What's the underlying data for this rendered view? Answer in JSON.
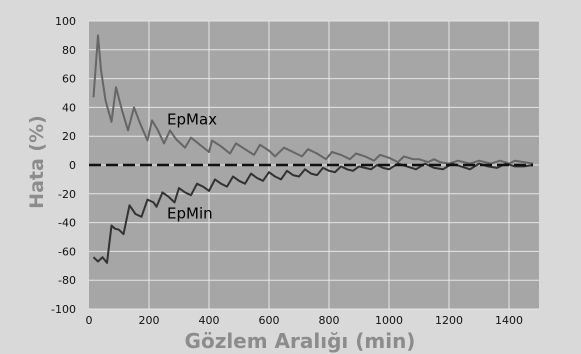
{
  "chart_data": {
    "type": "line",
    "title": "",
    "xlabel": "Gözlem Aralığı (min)",
    "ylabel": "Hata (%)",
    "xlim": [
      0,
      1500
    ],
    "ylim": [
      -100,
      100
    ],
    "x_ticks": [
      0,
      200,
      400,
      600,
      800,
      1000,
      1200,
      1400
    ],
    "y_ticks": [
      100,
      80,
      60,
      40,
      20,
      0,
      -20,
      -40,
      -60,
      -80,
      -100
    ],
    "grid": true,
    "series": [
      {
        "name": "EpMax",
        "color": "#666666",
        "points": [
          [
            15,
            47
          ],
          [
            30,
            90
          ],
          [
            40,
            66
          ],
          [
            55,
            45
          ],
          [
            75,
            30
          ],
          [
            90,
            54
          ],
          [
            110,
            38
          ],
          [
            130,
            24
          ],
          [
            150,
            40
          ],
          [
            170,
            29
          ],
          [
            195,
            17
          ],
          [
            210,
            31
          ],
          [
            230,
            24
          ],
          [
            250,
            15
          ],
          [
            270,
            24
          ],
          [
            290,
            18
          ],
          [
            320,
            12
          ],
          [
            340,
            19
          ],
          [
            370,
            14
          ],
          [
            400,
            9
          ],
          [
            410,
            17
          ],
          [
            440,
            13
          ],
          [
            470,
            8
          ],
          [
            490,
            15
          ],
          [
            520,
            11
          ],
          [
            550,
            7
          ],
          [
            570,
            14
          ],
          [
            600,
            10
          ],
          [
            620,
            6
          ],
          [
            650,
            12
          ],
          [
            680,
            9
          ],
          [
            710,
            6
          ],
          [
            730,
            11
          ],
          [
            760,
            8
          ],
          [
            790,
            4
          ],
          [
            810,
            9
          ],
          [
            840,
            7
          ],
          [
            870,
            4
          ],
          [
            890,
            8
          ],
          [
            920,
            6
          ],
          [
            950,
            3
          ],
          [
            970,
            7
          ],
          [
            1000,
            5
          ],
          [
            1030,
            2
          ],
          [
            1050,
            6
          ],
          [
            1080,
            4
          ],
          [
            1100,
            4
          ],
          [
            1130,
            2
          ],
          [
            1150,
            4
          ],
          [
            1170,
            2
          ],
          [
            1200,
            1
          ],
          [
            1230,
            3
          ],
          [
            1270,
            1
          ],
          [
            1300,
            3
          ],
          [
            1340,
            1
          ],
          [
            1370,
            3
          ],
          [
            1400,
            1
          ],
          [
            1420,
            3
          ],
          [
            1450,
            2
          ],
          [
            1480,
            1
          ]
        ]
      },
      {
        "name": "EpMin",
        "color": "#333333",
        "points": [
          [
            15,
            -64
          ],
          [
            30,
            -67
          ],
          [
            45,
            -64
          ],
          [
            60,
            -68
          ],
          [
            75,
            -42
          ],
          [
            85,
            -44
          ],
          [
            100,
            -45
          ],
          [
            115,
            -48
          ],
          [
            135,
            -28
          ],
          [
            155,
            -34
          ],
          [
            175,
            -36
          ],
          [
            195,
            -24
          ],
          [
            215,
            -26
          ],
          [
            225,
            -29
          ],
          [
            245,
            -19
          ],
          [
            265,
            -22
          ],
          [
            285,
            -26
          ],
          [
            300,
            -16
          ],
          [
            320,
            -19
          ],
          [
            340,
            -21
          ],
          [
            360,
            -13
          ],
          [
            380,
            -15
          ],
          [
            400,
            -18
          ],
          [
            420,
            -10
          ],
          [
            440,
            -13
          ],
          [
            460,
            -15
          ],
          [
            480,
            -8
          ],
          [
            500,
            -11
          ],
          [
            520,
            -13
          ],
          [
            540,
            -6
          ],
          [
            560,
            -9
          ],
          [
            580,
            -11
          ],
          [
            600,
            -5
          ],
          [
            620,
            -8
          ],
          [
            640,
            -10
          ],
          [
            660,
            -4
          ],
          [
            680,
            -7
          ],
          [
            700,
            -8
          ],
          [
            720,
            -3
          ],
          [
            740,
            -6
          ],
          [
            760,
            -7
          ],
          [
            780,
            -2
          ],
          [
            800,
            -4
          ],
          [
            820,
            -5
          ],
          [
            840,
            -1
          ],
          [
            860,
            -3
          ],
          [
            880,
            -4
          ],
          [
            900,
            -1
          ],
          [
            920,
            -2
          ],
          [
            940,
            -3
          ],
          [
            960,
            0
          ],
          [
            980,
            -2
          ],
          [
            1000,
            -3
          ],
          [
            1030,
            1
          ],
          [
            1060,
            -1
          ],
          [
            1090,
            -3
          ],
          [
            1120,
            1
          ],
          [
            1150,
            -2
          ],
          [
            1180,
            -3
          ],
          [
            1210,
            1
          ],
          [
            1240,
            -1
          ],
          [
            1270,
            -3
          ],
          [
            1300,
            1
          ],
          [
            1330,
            -1
          ],
          [
            1360,
            -2
          ],
          [
            1390,
            1
          ],
          [
            1420,
            -1
          ],
          [
            1450,
            -1
          ],
          [
            1480,
            0
          ]
        ]
      },
      {
        "name": "",
        "color": "#111111",
        "dashed": true,
        "points": [
          [
            0,
            0
          ],
          [
            1480,
            0
          ]
        ]
      }
    ],
    "annotations": [
      {
        "text": "EpMax",
        "x": 260,
        "y": 28
      },
      {
        "text": "EpMin",
        "x": 260,
        "y": -37
      }
    ]
  }
}
